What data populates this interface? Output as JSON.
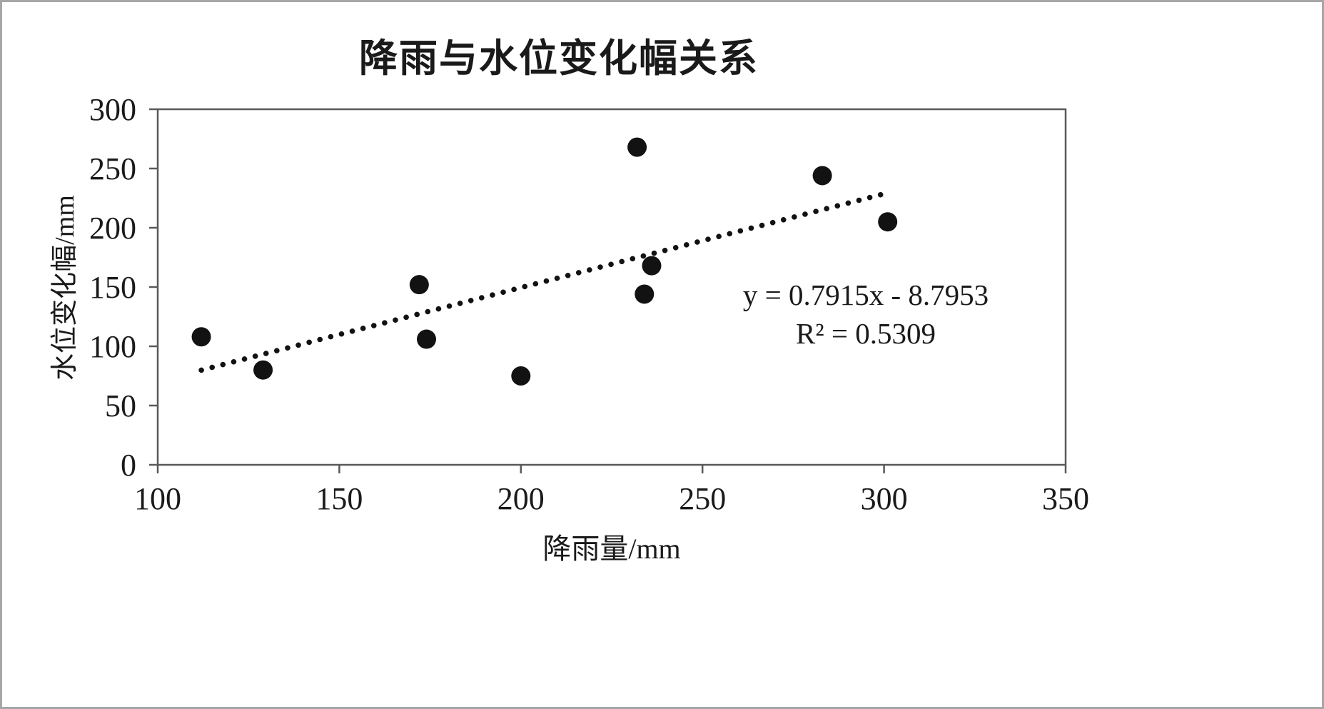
{
  "chart_data": {
    "type": "scatter",
    "title": "降雨与水位变化幅关系",
    "xlabel": "降雨量/mm",
    "ylabel": "水位变化幅/mm",
    "xlim": [
      100,
      350
    ],
    "ylim": [
      0,
      300
    ],
    "xticks": [
      100,
      150,
      200,
      250,
      300,
      350
    ],
    "yticks": [
      0,
      50,
      100,
      150,
      200,
      250,
      300
    ],
    "points": [
      [
        112,
        108
      ],
      [
        129,
        80
      ],
      [
        172,
        152
      ],
      [
        174,
        106
      ],
      [
        200,
        75
      ],
      [
        232,
        268
      ],
      [
        234,
        144
      ],
      [
        236,
        168
      ],
      [
        283,
        244
      ],
      [
        301,
        205
      ]
    ],
    "trendline": {
      "slope": 0.7915,
      "intercept": -8.7953,
      "x_start": 112,
      "x_end": 300,
      "style": "dotted",
      "equation": "y = 0.7915x - 8.7953",
      "r_squared": "R² = 0.5309"
    },
    "annotation": {
      "line1": "y = 0.7915x - 8.7953",
      "line2": "R² = 0.5309"
    },
    "grid": false,
    "legend": "none",
    "point_color": "#121212",
    "frame_color": "#595959",
    "text_color": "#1a1a1a"
  }
}
